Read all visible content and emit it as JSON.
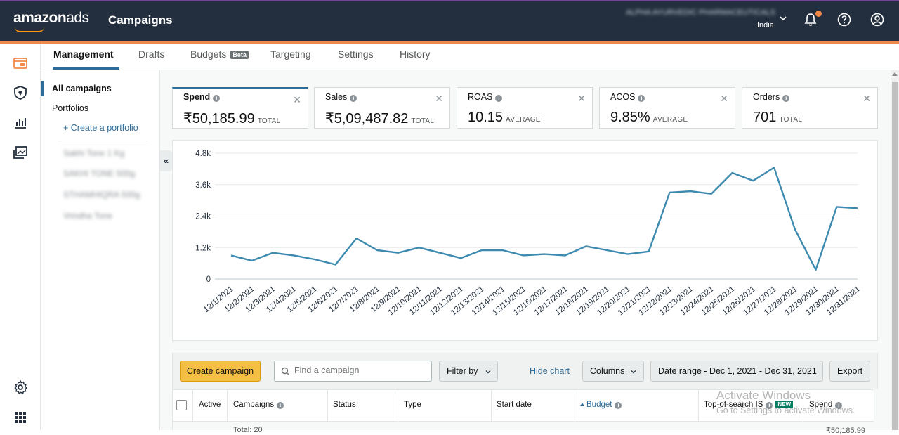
{
  "header": {
    "logo_text_1": "amazon",
    "logo_text_2": "ads",
    "app_title": "Campaigns",
    "account_name": "ALPHA AYURVEDIC PHARMACEUTICALS",
    "region": "India",
    "icons": [
      "bell-icon",
      "help-icon",
      "account-icon"
    ],
    "colors": {
      "bar": "#232f3e",
      "accent": "#f08a4b"
    }
  },
  "left_rail": {
    "icons": [
      "campaigns-icon",
      "shield-icon",
      "reports-icon",
      "media-icon",
      "settings-icon",
      "apps-grid-icon"
    ]
  },
  "tabs": [
    {
      "label": "Management",
      "active": true
    },
    {
      "label": "Drafts"
    },
    {
      "label": "Budgets",
      "badge": "Beta"
    },
    {
      "label": "Targeting"
    },
    {
      "label": "Settings"
    },
    {
      "label": "History"
    }
  ],
  "sidebar": {
    "all_campaigns": "All campaigns",
    "portfolios": "Portfolios",
    "create_portfolio": "+ Create a portfolio",
    "portfolio_items": [
      "Sakhi Tone 1 Kg",
      "SAKHI TONE 500g",
      "STHAMHIQRA 500g",
      "Vrindha Tone"
    ]
  },
  "metrics": [
    {
      "name": "Spend",
      "value": "₹50,185.99",
      "suffix": "TOTAL",
      "selected": true
    },
    {
      "name": "Sales",
      "value": "₹5,09,487.82",
      "suffix": "TOTAL"
    },
    {
      "name": "ROAS",
      "value": "10.15",
      "suffix": "AVERAGE"
    },
    {
      "name": "ACOS",
      "value": "9.85%",
      "suffix": "AVERAGE"
    },
    {
      "name": "Orders",
      "value": "701",
      "suffix": "TOTAL"
    }
  ],
  "chart_data": {
    "type": "line",
    "series": [
      {
        "values": [
          900,
          700,
          1000,
          900,
          750,
          550,
          1550,
          1100,
          1000,
          1200,
          1000,
          800,
          1100,
          1100,
          900,
          950,
          900,
          1250,
          1100,
          950,
          1050,
          3300,
          3350,
          3250,
          4050,
          3750,
          4250,
          1900,
          350,
          2750,
          2700
        ]
      }
    ],
    "x": [
      "12/1/2021",
      "12/2/2021",
      "12/3/2021",
      "12/4/2021",
      "12/5/2021",
      "12/6/2021",
      "12/7/2021",
      "12/8/2021",
      "12/9/2021",
      "12/10/2021",
      "12/11/2021",
      "12/12/2021",
      "12/13/2021",
      "12/14/2021",
      "12/15/2021",
      "12/16/2021",
      "12/17/2021",
      "12/18/2021",
      "12/19/2021",
      "12/20/2021",
      "12/21/2021",
      "12/22/2021",
      "12/23/2021",
      "12/24/2021",
      "12/25/2021",
      "12/26/2021",
      "12/27/2021",
      "12/28/2021",
      "12/29/2021",
      "12/30/2021",
      "12/31/2021"
    ],
    "y_ticks": [
      "0",
      "1.2k",
      "2.4k",
      "3.6k",
      "4.8k"
    ],
    "ylim": [
      0,
      4800
    ],
    "grid": true,
    "color": "#3d8ab0"
  },
  "toolbar": {
    "create_campaign": "Create campaign",
    "search_placeholder": "Find a campaign",
    "filter_by": "Filter by",
    "hide_chart": "Hide chart",
    "columns": "Columns",
    "date_range": "Date range - Dec 1, 2021 - Dec 31, 2021",
    "export": "Export"
  },
  "table": {
    "headers": [
      "Active",
      "Campaigns",
      "Status",
      "Type",
      "Start date",
      "Budget",
      "Top-of-search IS",
      "Spend"
    ],
    "new_badge": "NEW",
    "total_row_label": "Total: 20",
    "total_spend": "₹50,185.99"
  },
  "watermark": {
    "line1": "Activate Windows",
    "line2": "Go to Settings to activate Windows."
  }
}
